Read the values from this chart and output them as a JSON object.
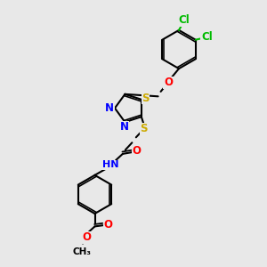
{
  "background_color": "#e8e8e8",
  "bond_color": "#000000",
  "bond_width": 1.5,
  "atom_colors": {
    "N": "#0000ff",
    "O": "#ff0000",
    "S": "#ccaa00",
    "Cl": "#00bb00",
    "H": "#aaaaaa"
  },
  "font_size": 8.5,
  "fig_size": [
    3.0,
    3.0
  ],
  "dpi": 100
}
